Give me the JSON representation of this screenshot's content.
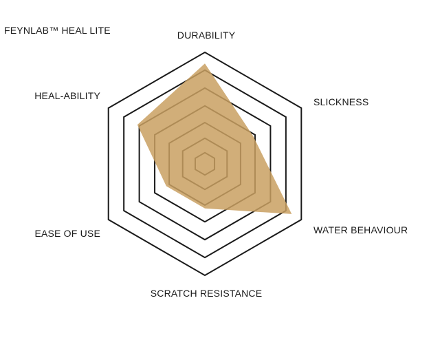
{
  "chart_data": {
    "type": "radar",
    "title": "FEYNLAB™ HEAL LITE",
    "axes": [
      "DURABILITY",
      "SLICKNESS",
      "WATER BEHAVIOUR",
      "SCRATCH RESISTANCE",
      "EASE OF USE",
      "HEAL-ABILITY"
    ],
    "scale_max": 10,
    "rings": 7,
    "series": [
      {
        "values": [
          9,
          5,
          9,
          4,
          4,
          7
        ],
        "color": "#c9a062"
      }
    ],
    "grid_color": "#1a1a1a"
  }
}
